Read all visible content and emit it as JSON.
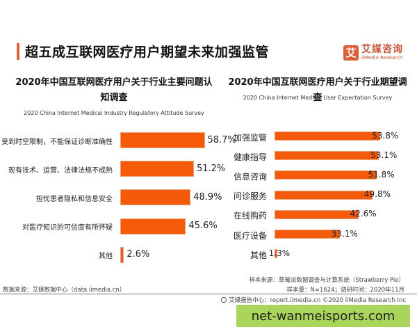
{
  "header": {
    "title": "超五成互联网医疗用户期望未来加强监管",
    "accent_color": "#e0623b"
  },
  "logo": {
    "icon": "艾",
    "name_cn": "艾媒咨询",
    "name_en": "iiMedia Research"
  },
  "left_chart": {
    "title_line1": "2020年中国互联网医疗用户关于行业主要问题认",
    "title_line2": "知调查",
    "subtitle": "2020 China Internet Medical Industry Regulatory Attitude Survey"
  },
  "right_chart": {
    "title": "2020年中国互联网医疗用户关于行业期望调查",
    "subtitle": "2020 China Internet Medical User Expectation Survey"
  },
  "chart_data": [
    {
      "type": "bar",
      "orientation": "horizontal",
      "title": "2020年中国互联网医疗用户关于行业主要问题认知调查",
      "subtitle": "2020 China Internet Medical Industry Regulatory Attitude Survey",
      "categories": [
        "受到时空限制，不能保证诊断准确性",
        "现有技术、运营、法律法规不成熟",
        "担忧患者隐私和信息安全",
        "对医疗知识的可信度有所怀疑",
        "其他"
      ],
      "values": [
        58.7,
        51.2,
        48.9,
        45.6,
        2.6
      ],
      "labels": [
        "58.7%",
        "51.2%",
        "48.9%",
        "45.6%",
        "2.6%"
      ],
      "unit": "%",
      "bar_color": "#f55a0a",
      "grid": false
    },
    {
      "type": "bar",
      "orientation": "horizontal",
      "title": "2020年中国互联网医疗用户关于行业期望调查",
      "subtitle": "2020 China Internet Medical User Expectation Survey",
      "categories": [
        "加强监管",
        "健康指导",
        "信息咨询",
        "问诊服务",
        "在线购药",
        "医疗设备",
        "其他"
      ],
      "values": [
        53.8,
        53.1,
        51.8,
        49.8,
        42.6,
        33.1,
        1.3
      ],
      "labels": [
        "53.8%",
        "53.1%",
        "51.8%",
        "49.8%",
        "42.6%",
        "33.1%",
        "1.3%"
      ],
      "unit": "%",
      "bar_color": "#f55a0a",
      "grid": false
    }
  ],
  "footer": {
    "source": "数据来源：艾媒数据中心（data.iimedia.cn）",
    "sample_source": "样本来源：草莓派数据调查与计算系统（Strawberry Pie）",
    "sample_size": "样本量：N=1624；调研时间：2020年11月",
    "report_center": "艾媒报告中心：report.iimedia.cn   ©2020  iiMedia Research  Inc"
  },
  "watermark": {
    "text": "net-wanmeisports.com",
    "color": "#a8d55a"
  }
}
